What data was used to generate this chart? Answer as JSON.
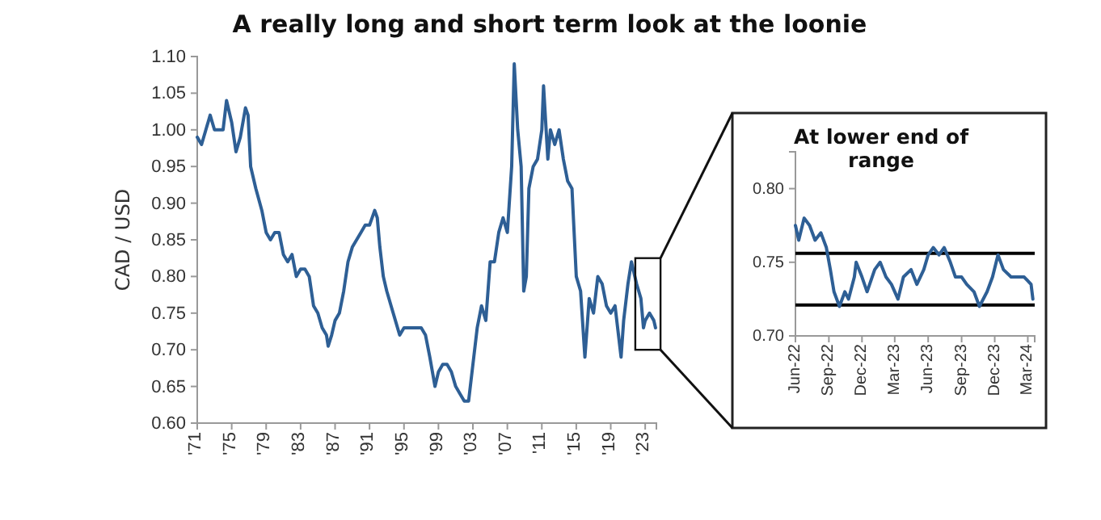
{
  "chart_data": [
    {
      "type": "line",
      "title": "A really long and short term look at the loonie",
      "ylabel": "CAD / USD",
      "color": "#2e5f95",
      "x": [
        1971,
        1971.5,
        1972,
        1972.5,
        1973,
        1973.5,
        1974,
        1974.4,
        1975,
        1975.5,
        1976,
        1976.6,
        1976.9,
        1977.2,
        1977.8,
        1978.5,
        1979,
        1979.5,
        1980,
        1980.5,
        1981,
        1981.5,
        1982,
        1982.5,
        1983,
        1983.5,
        1984,
        1984.5,
        1985,
        1985.5,
        1986,
        1986.2,
        1986.6,
        1987,
        1987.5,
        1988,
        1988.5,
        1989,
        1989.5,
        1990,
        1990.5,
        1991,
        1991.6,
        1991.9,
        1992.2,
        1992.6,
        1993,
        1993.5,
        1994,
        1994.5,
        1995,
        1995.5,
        1996,
        1996.5,
        1997,
        1997.5,
        1998,
        1998.6,
        1999,
        1999.5,
        2000,
        2000.5,
        2001,
        2001.5,
        2002,
        2002.5,
        2003,
        2003.5,
        2004,
        2004.5,
        2005,
        2005.5,
        2006,
        2006.5,
        2007,
        2007.5,
        2007.8,
        2008.2,
        2008.6,
        2008.9,
        2009.2,
        2009.5,
        2010,
        2010.5,
        2011,
        2011.2,
        2011.7,
        2012,
        2012.5,
        2013,
        2013.5,
        2014,
        2014.5,
        2015,
        2015.5,
        2016,
        2016.5,
        2017,
        2017.5,
        2018,
        2018.5,
        2019,
        2019.5,
        2020.2,
        2020.5,
        2021,
        2021.4,
        2022,
        2022.5,
        2022.8,
        2023,
        2023.5,
        2024,
        2024.2
      ],
      "values": [
        0.99,
        0.98,
        1.0,
        1.02,
        1.0,
        1.0,
        1.0,
        1.04,
        1.01,
        0.97,
        0.99,
        1.03,
        1.02,
        0.95,
        0.92,
        0.89,
        0.86,
        0.85,
        0.86,
        0.86,
        0.83,
        0.82,
        0.83,
        0.8,
        0.81,
        0.81,
        0.8,
        0.76,
        0.75,
        0.73,
        0.72,
        0.705,
        0.72,
        0.74,
        0.75,
        0.78,
        0.82,
        0.84,
        0.85,
        0.86,
        0.87,
        0.87,
        0.89,
        0.88,
        0.84,
        0.8,
        0.78,
        0.76,
        0.74,
        0.72,
        0.73,
        0.73,
        0.73,
        0.73,
        0.73,
        0.72,
        0.69,
        0.65,
        0.67,
        0.68,
        0.68,
        0.67,
        0.65,
        0.64,
        0.63,
        0.63,
        0.68,
        0.73,
        0.76,
        0.74,
        0.82,
        0.82,
        0.86,
        0.88,
        0.86,
        0.95,
        1.09,
        1.0,
        0.95,
        0.78,
        0.8,
        0.92,
        0.95,
        0.96,
        1.0,
        1.06,
        0.96,
        1.0,
        0.98,
        1.0,
        0.96,
        0.93,
        0.92,
        0.8,
        0.78,
        0.69,
        0.77,
        0.75,
        0.8,
        0.79,
        0.76,
        0.75,
        0.76,
        0.69,
        0.74,
        0.79,
        0.82,
        0.79,
        0.77,
        0.73,
        0.74,
        0.75,
        0.74,
        0.73
      ],
      "xlim": [
        1971,
        2024.3
      ],
      "xticks": [
        {
          "value": 1971,
          "label": "'71"
        },
        {
          "value": 1975,
          "label": "'75"
        },
        {
          "value": 1979,
          "label": "'79"
        },
        {
          "value": 1983,
          "label": "'83"
        },
        {
          "value": 1987,
          "label": "'87"
        },
        {
          "value": 1991,
          "label": "'91"
        },
        {
          "value": 1995,
          "label": "'95"
        },
        {
          "value": 1999,
          "label": "'99"
        },
        {
          "value": 2003,
          "label": "'03"
        },
        {
          "value": 2007,
          "label": "'07"
        },
        {
          "value": 2011,
          "label": "'11"
        },
        {
          "value": 2015,
          "label": "'15"
        },
        {
          "value": 2019,
          "label": "'19"
        },
        {
          "value": 2023,
          "label": "'23"
        }
      ],
      "ylim": [
        0.6,
        1.1
      ],
      "yticks": [
        {
          "value": 0.6,
          "label": "0.60"
        },
        {
          "value": 0.65,
          "label": "0.65"
        },
        {
          "value": 0.7,
          "label": "0.70"
        },
        {
          "value": 0.75,
          "label": "0.75"
        },
        {
          "value": 0.8,
          "label": "0.80"
        },
        {
          "value": 0.85,
          "label": "0.85"
        },
        {
          "value": 0.9,
          "label": "0.90"
        },
        {
          "value": 0.95,
          "label": "0.95"
        },
        {
          "value": 1.0,
          "label": "1.00"
        },
        {
          "value": 1.05,
          "label": "1.05"
        },
        {
          "value": 1.1,
          "label": "1.10"
        }
      ],
      "grid": false
    },
    {
      "type": "line",
      "title": "At lower end of range",
      "color": "#2e5f95",
      "x": [
        "2022-06-01",
        "2022-06-10",
        "2022-06-25",
        "2022-07-10",
        "2022-07-25",
        "2022-08-10",
        "2022-08-25",
        "2022-09-05",
        "2022-09-15",
        "2022-09-30",
        "2022-10-15",
        "2022-10-25",
        "2022-11-10",
        "2022-11-15",
        "2022-12-01",
        "2022-12-15",
        "2023-01-05",
        "2023-01-20",
        "2023-02-05",
        "2023-02-20",
        "2023-03-10",
        "2023-03-25",
        "2023-04-15",
        "2023-05-01",
        "2023-05-20",
        "2023-06-01",
        "2023-06-15",
        "2023-07-01",
        "2023-07-15",
        "2023-08-01",
        "2023-08-15",
        "2023-09-01",
        "2023-09-15",
        "2023-10-05",
        "2023-10-20",
        "2023-11-10",
        "2023-11-25",
        "2023-12-10",
        "2023-12-25",
        "2024-01-15",
        "2024-02-01",
        "2024-02-20",
        "2024-03-10",
        "2024-03-15"
      ],
      "values": [
        0.775,
        0.765,
        0.78,
        0.775,
        0.765,
        0.77,
        0.76,
        0.745,
        0.73,
        0.72,
        0.73,
        0.725,
        0.74,
        0.75,
        0.74,
        0.73,
        0.745,
        0.75,
        0.74,
        0.735,
        0.725,
        0.74,
        0.745,
        0.735,
        0.745,
        0.755,
        0.76,
        0.755,
        0.76,
        0.75,
        0.74,
        0.74,
        0.735,
        0.73,
        0.72,
        0.73,
        0.74,
        0.755,
        0.745,
        0.74,
        0.74,
        0.74,
        0.735,
        0.725
      ],
      "xlim": [
        "2022-06-01",
        "2024-03-20"
      ],
      "xticks": [
        {
          "value": "2022-06-01",
          "label": "Jun-22"
        },
        {
          "value": "2022-09-01",
          "label": "Sep-22"
        },
        {
          "value": "2022-12-01",
          "label": "Dec-22"
        },
        {
          "value": "2023-03-01",
          "label": "Mar-23"
        },
        {
          "value": "2023-06-01",
          "label": "Jun-23"
        },
        {
          "value": "2023-09-01",
          "label": "Sep-23"
        },
        {
          "value": "2023-12-01",
          "label": "Dec-23"
        },
        {
          "value": "2024-03-01",
          "label": "Mar-24"
        }
      ],
      "ylim": [
        0.7,
        0.825
      ],
      "yticks": [
        {
          "value": 0.7,
          "label": "0.70"
        },
        {
          "value": 0.75,
          "label": "0.75"
        },
        {
          "value": 0.8,
          "label": "0.80"
        }
      ],
      "ref_lines": [
        {
          "axis": "y",
          "value": 0.756,
          "color": "#000000"
        },
        {
          "axis": "y",
          "value": 0.721,
          "color": "#000000"
        }
      ],
      "grid": false
    }
  ]
}
